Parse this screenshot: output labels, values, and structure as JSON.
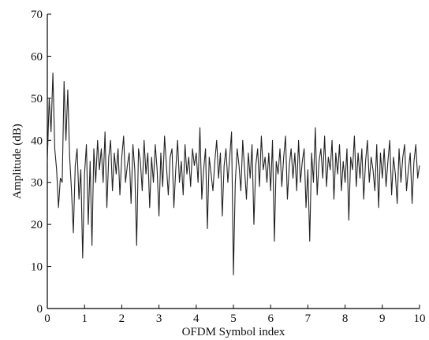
{
  "chart_data": {
    "type": "line",
    "title": "",
    "xlabel": "OFDM Symbol index",
    "ylabel": "Amplitude (dB)",
    "xlim": [
      0,
      10
    ],
    "ylim": [
      0,
      70
    ],
    "xticks": [
      0,
      1,
      2,
      3,
      4,
      5,
      6,
      7,
      8,
      9,
      10
    ],
    "yticks": [
      0,
      10,
      20,
      30,
      40,
      50,
      60,
      70
    ],
    "grid": false,
    "legend": "none",
    "colors": {
      "line": "#222222",
      "axes": "#000000"
    },
    "series": [
      {
        "x": [
          0,
          0.05,
          0.1,
          0.15,
          0.2,
          0.25,
          0.3,
          0.35,
          0.4,
          0.45,
          0.5,
          0.55,
          0.6,
          0.65,
          0.7,
          0.75,
          0.8,
          0.85,
          0.9,
          0.95,
          1.0,
          1.05,
          1.1,
          1.15,
          1.2,
          1.25,
          1.3,
          1.35,
          1.4,
          1.45,
          1.5,
          1.55,
          1.6,
          1.65,
          1.7,
          1.75,
          1.8,
          1.85,
          1.9,
          1.95,
          2.0,
          2.05,
          2.1,
          2.15,
          2.2,
          2.25,
          2.3,
          2.35,
          2.4,
          2.45,
          2.5,
          2.55,
          2.6,
          2.65,
          2.7,
          2.75,
          2.8,
          2.85,
          2.9,
          2.95,
          3.0,
          3.05,
          3.1,
          3.15,
          3.2,
          3.25,
          3.3,
          3.35,
          3.4,
          3.45,
          3.5,
          3.55,
          3.6,
          3.65,
          3.7,
          3.75,
          3.8,
          3.85,
          3.9,
          3.95,
          4.0,
          4.05,
          4.1,
          4.15,
          4.2,
          4.25,
          4.3,
          4.35,
          4.4,
          4.45,
          4.5,
          4.55,
          4.6,
          4.65,
          4.7,
          4.75,
          4.8,
          4.85,
          4.9,
          4.95,
          5.0,
          5.05,
          5.1,
          5.15,
          5.2,
          5.25,
          5.3,
          5.35,
          5.4,
          5.45,
          5.5,
          5.55,
          5.6,
          5.65,
          5.7,
          5.75,
          5.8,
          5.85,
          5.9,
          5.95,
          6.0,
          6.05,
          6.1,
          6.15,
          6.2,
          6.25,
          6.3,
          6.35,
          6.4,
          6.45,
          6.5,
          6.55,
          6.6,
          6.65,
          6.7,
          6.75,
          6.8,
          6.85,
          6.9,
          6.95,
          7.0,
          7.05,
          7.1,
          7.15,
          7.2,
          7.25,
          7.3,
          7.35,
          7.4,
          7.45,
          7.5,
          7.55,
          7.6,
          7.65,
          7.7,
          7.75,
          7.8,
          7.85,
          7.9,
          7.95,
          8.0,
          8.05,
          8.1,
          8.15,
          8.2,
          8.25,
          8.3,
          8.35,
          8.4,
          8.45,
          8.5,
          8.55,
          8.6,
          8.65,
          8.7,
          8.75,
          8.8,
          8.85,
          8.9,
          8.95,
          9.0,
          9.05,
          9.1,
          9.15,
          9.2,
          9.25,
          9.3,
          9.35,
          9.4,
          9.45,
          9.5,
          9.55,
          9.6,
          9.65,
          9.7,
          9.75,
          9.8,
          9.85,
          9.9,
          9.95,
          10.0
        ],
        "values": [
          35,
          50,
          42,
          56,
          38,
          33,
          24,
          31,
          30,
          54,
          40,
          52,
          36,
          28,
          18,
          34,
          38,
          26,
          33,
          12,
          32,
          39,
          20,
          35,
          15,
          38,
          30,
          40,
          33,
          38,
          30,
          42,
          24,
          36,
          40,
          28,
          37,
          32,
          38,
          27,
          36,
          41,
          30,
          34,
          37,
          25,
          39,
          33,
          15,
          38,
          35,
          28,
          40,
          32,
          37,
          24,
          36,
          30,
          39,
          33,
          22,
          37,
          29,
          41,
          34,
          27,
          36,
          38,
          24,
          33,
          40,
          30,
          35,
          27,
          39,
          32,
          36,
          29,
          38,
          34,
          37,
          30,
          43,
          26,
          33,
          38,
          19,
          36,
          32,
          28,
          35,
          40,
          31,
          37,
          22,
          34,
          38,
          30,
          36,
          42,
          8,
          30,
          38,
          34,
          28,
          40,
          33,
          26,
          37,
          31,
          39,
          20,
          34,
          38,
          29,
          41,
          33,
          36,
          30,
          37,
          28,
          40,
          16,
          35,
          32,
          38,
          29,
          36,
          41,
          26,
          34,
          38,
          31,
          37,
          28,
          40,
          30,
          35,
          38,
          24,
          33,
          16,
          37,
          30,
          43,
          27,
          35,
          38,
          31,
          41,
          29,
          36,
          33,
          40,
          26,
          37,
          32,
          39,
          28,
          35,
          30,
          38,
          21,
          36,
          33,
          41,
          29,
          37,
          31,
          38,
          26,
          35,
          40,
          30,
          36,
          33,
          28,
          39,
          24,
          37,
          31,
          38,
          29,
          35,
          40,
          27,
          36,
          32,
          25,
          38,
          30,
          36,
          39,
          28,
          33,
          37,
          25,
          35,
          39,
          31,
          34
        ]
      }
    ]
  }
}
